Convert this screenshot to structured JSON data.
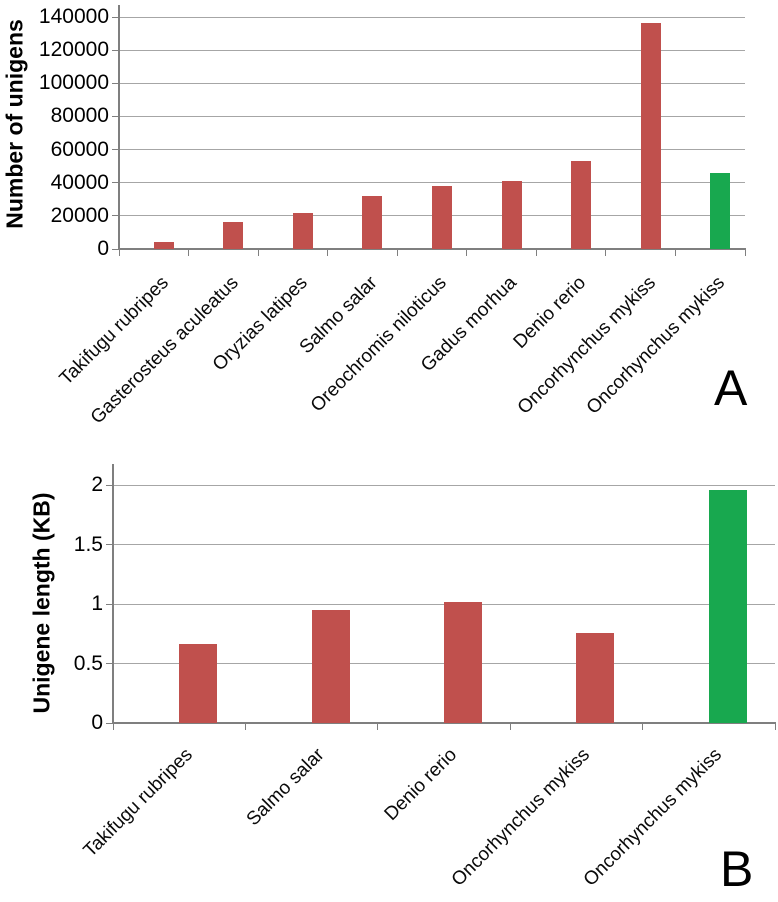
{
  "colors": {
    "bar_red": "#C0504D",
    "bar_green": "#18A84F",
    "gridline": "#A6A6A6",
    "axis": "#7F7F7F",
    "background": "#FFFFFF"
  },
  "chart_data": [
    {
      "type": "bar",
      "panel_label": "A",
      "title": "",
      "xlabel": "",
      "ylabel": "Number of unigens",
      "categories": [
        "Takifugu rubripes",
        "Gasterosteus aculeatus",
        "Oryzias latipes",
        "Salmo salar",
        "Oreochromis niloticus",
        "Gadus morhua",
        "Denio rerio",
        "Oncorhynchus mykiss",
        "Oncorhynchus mykiss"
      ],
      "values": [
        4000,
        16500,
        21500,
        32000,
        38000,
        41000,
        53000,
        136500,
        46000
      ],
      "bar_colors": [
        "#C0504D",
        "#C0504D",
        "#C0504D",
        "#C0504D",
        "#C0504D",
        "#C0504D",
        "#C0504D",
        "#C0504D",
        "#18A84F"
      ],
      "ylim": [
        0,
        140000
      ],
      "yticks": [
        0,
        20000,
        40000,
        60000,
        80000,
        100000,
        120000,
        140000
      ],
      "grid": true,
      "legend": "none"
    },
    {
      "type": "bar",
      "panel_label": "B",
      "title": "",
      "xlabel": "",
      "ylabel": "Unigene length (KB)",
      "categories": [
        "Takifugu rubripes",
        "Salmo salar",
        "Denio rerio",
        "Oncorhynchus mykiss",
        "Oncorhynchus mykiss"
      ],
      "values": [
        0.66,
        0.95,
        1.02,
        0.76,
        1.96
      ],
      "bar_colors": [
        "#C0504D",
        "#C0504D",
        "#C0504D",
        "#C0504D",
        "#18A84F"
      ],
      "ylim": [
        0,
        2
      ],
      "yticks": [
        0,
        0.5,
        1,
        1.5,
        2
      ],
      "grid": true,
      "legend": "none"
    }
  ]
}
